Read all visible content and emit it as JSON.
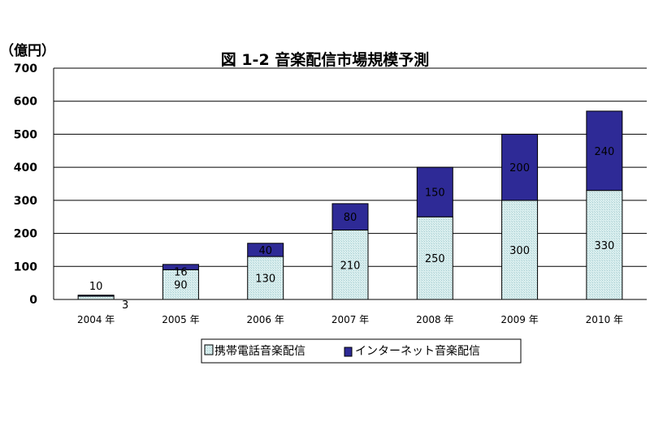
{
  "chart_data": {
    "type": "bar",
    "stacked": true,
    "title": "図 1-2  音楽配信市場規模予測",
    "unit_label": "（億円）",
    "categories": [
      "2004 年",
      "2005 年",
      "2006 年",
      "2007 年",
      "2008 年",
      "2009 年",
      "2010 年"
    ],
    "series": [
      {
        "name": "携帯電話音楽配信",
        "values": [
          10,
          90,
          130,
          210,
          250,
          300,
          330
        ],
        "color": "#cfe9ea"
      },
      {
        "name": "インターネット音楽配信",
        "values": [
          3,
          16,
          40,
          80,
          150,
          200,
          240
        ],
        "color": "#2e2a96"
      }
    ],
    "data_labels": {
      "s0": [
        "10",
        "90",
        "130",
        "210",
        "250",
        "300",
        "330"
      ],
      "s1": [
        "3",
        "16",
        "40",
        "80",
        "150",
        "200",
        "240"
      ]
    },
    "yticks": [
      "0",
      "100",
      "200",
      "300",
      "400",
      "500",
      "600",
      "700"
    ],
    "ylim": [
      0,
      700
    ],
    "grid": true,
    "legend_position": "bottom"
  }
}
